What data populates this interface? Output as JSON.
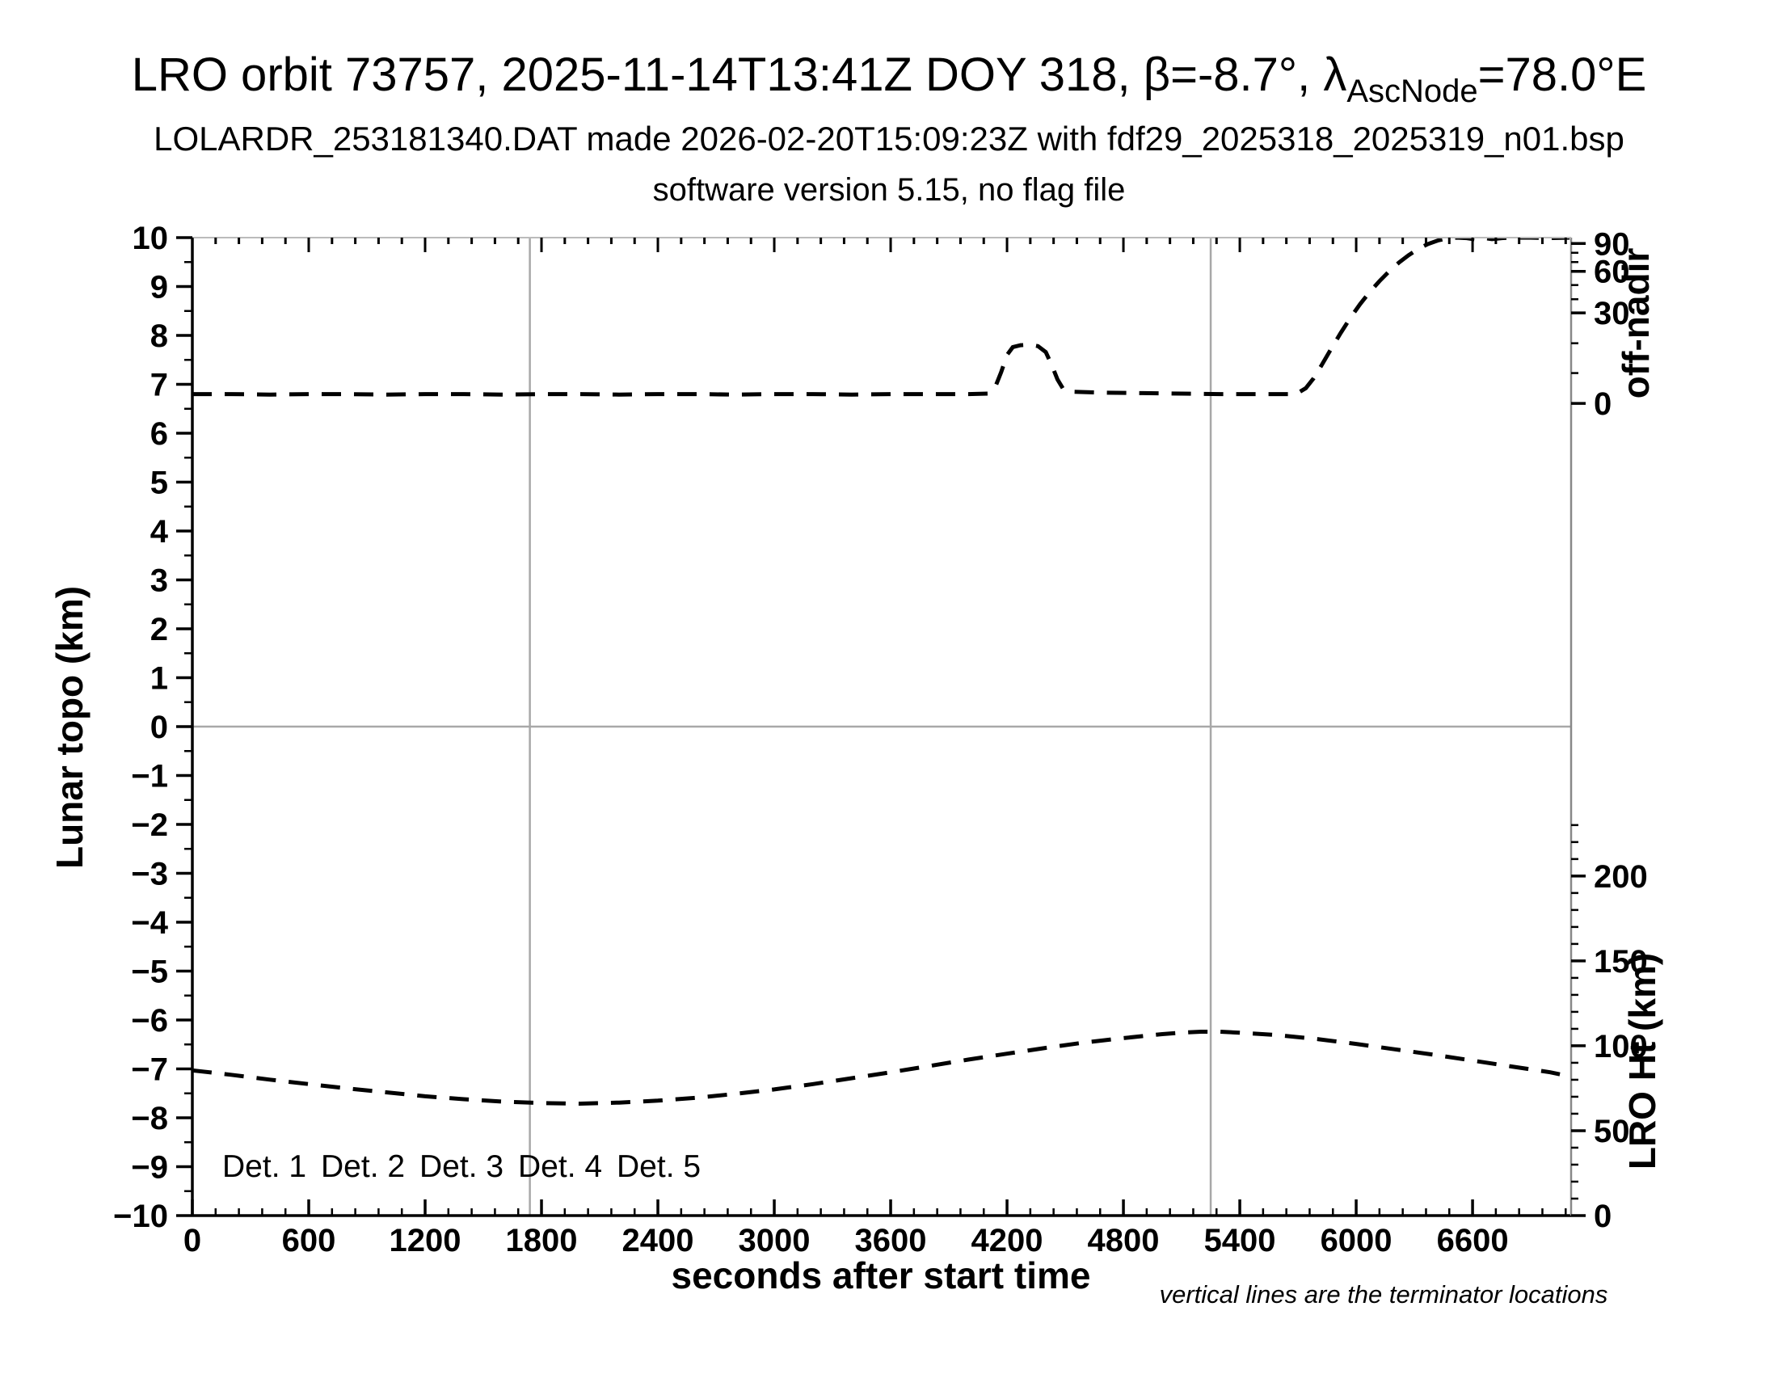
{
  "header": {
    "title_prefix": "LRO orbit 73757, 2025-11-14T13:41Z DOY 318, β=-8.7°, λ",
    "title_sub": "AscNode",
    "title_suffix": "=78.0°E",
    "subtitle": "LOLARDR_253181340.DAT made 2026-02-20T15:09:23Z with fdf29_2025318_2025319_n01.bsp",
    "software_line": "software version 5.15, no flag file"
  },
  "chart_data": {
    "type": "line",
    "title": "LRO orbit 73757, 2025-11-14T13:41Z DOY 318, β=-8.7°, λAscNode=78.0°E",
    "xlabel": "seconds after start time",
    "ylabel": "Lunar topo (km)",
    "y2_top_label": "off-nadir",
    "y2_bottom_label": "LRO Ht (km)",
    "note": "vertical lines are the terminator locations",
    "x_domain": [
      0,
      7108
    ],
    "x_major_tick_step": 600,
    "x_major_tick_labels": [
      "0",
      "600",
      "1200",
      "1800",
      "2400",
      "3000",
      "3600",
      "4200",
      "4800",
      "5400",
      "6000",
      "6600"
    ],
    "x_minor_tick_step": 120,
    "y_domain": [
      -10,
      10
    ],
    "y_major_tick_step": 1,
    "y_minor_tick_step": 0.5,
    "grid": false,
    "zero_line_topo": 0,
    "terminator_lines_s": [
      1740,
      5250
    ],
    "off_nadir_axis": {
      "major_ticks": [
        {
          "label": "90",
          "topo": 9.88
        },
        {
          "label": "60",
          "topo": 9.31
        },
        {
          "label": "30",
          "topo": 8.46
        },
        {
          "label": "0",
          "topo": 6.61
        }
      ],
      "minor_ticks_topo": [
        9.69,
        9.5,
        9.03,
        8.74,
        7.84,
        7.23
      ]
    },
    "lro_ht_axis": {
      "major_ticks_km": [
        0,
        50,
        100,
        150,
        200
      ],
      "minor_tick_step_km": 10,
      "minor_tick_max_km": 230,
      "km_per_topo_unit": 28.8,
      "zero_km_at_topo": -10
    },
    "series": [
      {
        "name": "spacecraft off-nadir angle",
        "axis": "off-nadir",
        "style": "dashed",
        "color": "#000000",
        "points_s_topo": [
          [
            0,
            6.8
          ],
          [
            200,
            6.8
          ],
          [
            400,
            6.79
          ],
          [
            600,
            6.8
          ],
          [
            800,
            6.8
          ],
          [
            1000,
            6.79
          ],
          [
            1200,
            6.8
          ],
          [
            1400,
            6.8
          ],
          [
            1600,
            6.79
          ],
          [
            1800,
            6.8
          ],
          [
            2000,
            6.8
          ],
          [
            2200,
            6.79
          ],
          [
            2400,
            6.8
          ],
          [
            2600,
            6.8
          ],
          [
            2800,
            6.79
          ],
          [
            3000,
            6.8
          ],
          [
            3200,
            6.8
          ],
          [
            3400,
            6.79
          ],
          [
            3600,
            6.8
          ],
          [
            3800,
            6.8
          ],
          [
            4000,
            6.8
          ],
          [
            4100,
            6.81
          ],
          [
            4140,
            6.95
          ],
          [
            4170,
            7.25
          ],
          [
            4200,
            7.6
          ],
          [
            4230,
            7.76
          ],
          [
            4270,
            7.8
          ],
          [
            4320,
            7.81
          ],
          [
            4360,
            7.78
          ],
          [
            4400,
            7.66
          ],
          [
            4430,
            7.4
          ],
          [
            4460,
            7.1
          ],
          [
            4490,
            6.9
          ],
          [
            4520,
            6.85
          ],
          [
            4700,
            6.83
          ],
          [
            4900,
            6.82
          ],
          [
            5100,
            6.81
          ],
          [
            5300,
            6.8
          ],
          [
            5500,
            6.8
          ],
          [
            5690,
            6.8
          ],
          [
            5740,
            6.92
          ],
          [
            5780,
            7.12
          ],
          [
            5820,
            7.38
          ],
          [
            5870,
            7.72
          ],
          [
            5920,
            8.05
          ],
          [
            5970,
            8.36
          ],
          [
            6020,
            8.64
          ],
          [
            6070,
            8.89
          ],
          [
            6120,
            9.11
          ],
          [
            6170,
            9.31
          ],
          [
            6220,
            9.49
          ],
          [
            6270,
            9.64
          ],
          [
            6320,
            9.77
          ],
          [
            6370,
            9.87
          ],
          [
            6420,
            9.94
          ],
          [
            6470,
            9.985
          ],
          [
            6520,
            10.0
          ],
          [
            6570,
            9.99
          ],
          [
            6620,
            9.96
          ],
          [
            6660,
            9.99
          ],
          [
            6700,
            9.97
          ],
          [
            6750,
            9.99
          ],
          [
            6800,
            10.0
          ],
          [
            6900,
            10.0
          ],
          [
            7000,
            9.99
          ],
          [
            7100,
            10.0
          ]
        ]
      },
      {
        "name": "LRO height",
        "axis": "LRO Ht (km)",
        "style": "dashed",
        "color": "#000000",
        "points_s_topo": [
          [
            0,
            -7.03
          ],
          [
            200,
            -7.12
          ],
          [
            400,
            -7.22
          ],
          [
            600,
            -7.31
          ],
          [
            800,
            -7.4
          ],
          [
            1000,
            -7.48
          ],
          [
            1200,
            -7.56
          ],
          [
            1400,
            -7.62
          ],
          [
            1600,
            -7.67
          ],
          [
            1800,
            -7.7
          ],
          [
            2000,
            -7.71
          ],
          [
            2200,
            -7.69
          ],
          [
            2400,
            -7.65
          ],
          [
            2600,
            -7.59
          ],
          [
            2800,
            -7.51
          ],
          [
            3000,
            -7.42
          ],
          [
            3200,
            -7.31
          ],
          [
            3400,
            -7.19
          ],
          [
            3600,
            -7.07
          ],
          [
            3800,
            -6.94
          ],
          [
            4000,
            -6.81
          ],
          [
            4200,
            -6.69
          ],
          [
            4400,
            -6.57
          ],
          [
            4600,
            -6.46
          ],
          [
            4800,
            -6.37
          ],
          [
            5000,
            -6.29
          ],
          [
            5100,
            -6.26
          ],
          [
            5200,
            -6.24
          ],
          [
            5300,
            -6.24
          ],
          [
            5400,
            -6.26
          ],
          [
            5600,
            -6.31
          ],
          [
            5800,
            -6.39
          ],
          [
            6000,
            -6.49
          ],
          [
            6200,
            -6.6
          ],
          [
            6400,
            -6.71
          ],
          [
            6600,
            -6.83
          ],
          [
            6800,
            -6.95
          ],
          [
            7000,
            -7.07
          ],
          [
            7050,
            -7.11
          ]
        ]
      }
    ],
    "legend": [
      {
        "label": "Det. 1",
        "color": "#000000"
      },
      {
        "label": "Det. 2",
        "color": "#0000ff"
      },
      {
        "label": "Det. 3",
        "color": "#00dd00"
      },
      {
        "label": "Det. 4",
        "color": "#ffa500"
      },
      {
        "label": "Det. 5",
        "color": "#ee0000"
      }
    ],
    "colors": {
      "curve": "#000000",
      "reference_lines": "#a8a8a8",
      "axis": "#000000"
    }
  }
}
